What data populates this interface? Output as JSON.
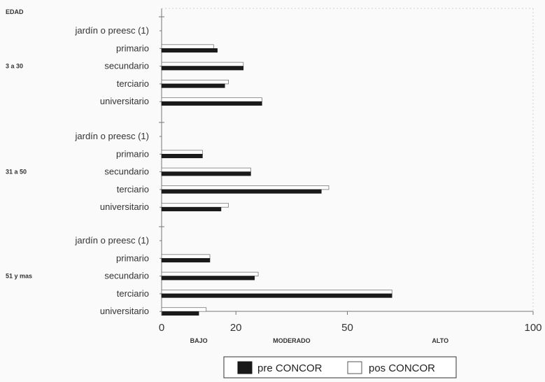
{
  "chart_data": {
    "type": "bar",
    "orientation": "horizontal",
    "y_axis_title": "EDAD",
    "groups": [
      {
        "name": "3 a 30",
        "categories": [
          "jardín o preesc (1)",
          "primario",
          "secundario",
          "terciario",
          "universitario"
        ]
      },
      {
        "name": "31 a 50",
        "categories": [
          "jardín o preesc (1)",
          "primario",
          "secundario",
          "terciario",
          "universitario"
        ]
      },
      {
        "name": "51 y mas",
        "categories": [
          "jardín o preesc (1)",
          "primario",
          "secundario",
          "terciario",
          "universitario"
        ]
      }
    ],
    "series": [
      {
        "name": "pre CONCOR",
        "color": "#1a1a1a",
        "values": [
          [
            null,
            15,
            22,
            17,
            27
          ],
          [
            null,
            11,
            24,
            43,
            16
          ],
          [
            null,
            13,
            25,
            62,
            10
          ]
        ]
      },
      {
        "name": "pos CONCOR",
        "color": "#ffffff",
        "values": [
          [
            null,
            14,
            22,
            18,
            27
          ],
          [
            null,
            11,
            24,
            45,
            18
          ],
          [
            null,
            13,
            26,
            62,
            12
          ]
        ]
      }
    ],
    "xlim": [
      0,
      100
    ],
    "x_ticks": [
      0,
      20,
      50,
      100
    ],
    "zone_labels": [
      {
        "text": "BAJO",
        "x": 10
      },
      {
        "text": "MODERADO",
        "x": 35
      },
      {
        "text": "ALTO",
        "x": 75
      }
    ],
    "legend_position": "bottom-center",
    "grid": false
  }
}
